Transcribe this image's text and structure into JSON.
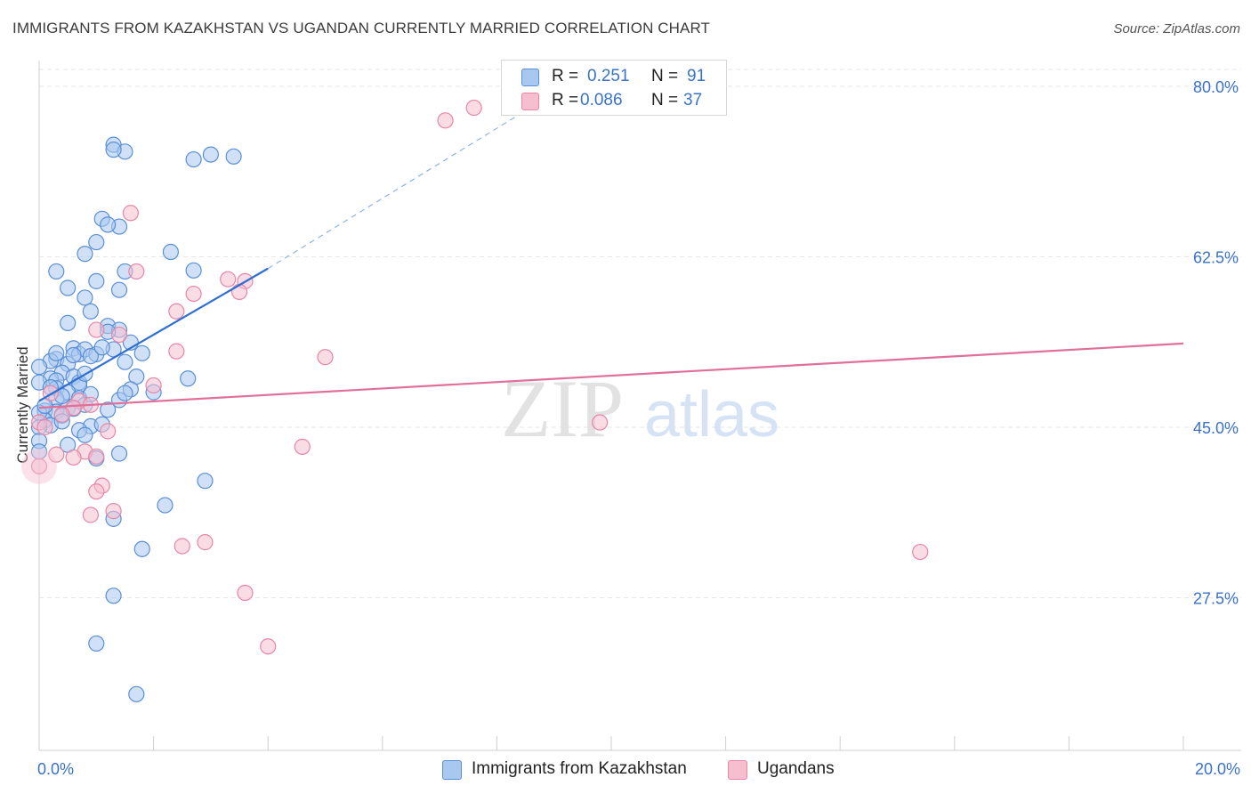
{
  "title": "IMMIGRANTS FROM KAZAKHSTAN VS UGANDAN CURRENTLY MARRIED CORRELATION CHART",
  "source": "Source: ZipAtlas.com",
  "watermark": {
    "zip": "ZIP",
    "atlas": "atlas"
  },
  "stats": {
    "r_label": "R =",
    "n_label": "N =",
    "series1": {
      "r": "0.251",
      "n": "91"
    },
    "series2": {
      "r": "0.086",
      "n": "37"
    }
  },
  "legend": {
    "series1": "Immigrants from Kazakhstan",
    "series2": "Ugandans"
  },
  "colors": {
    "blue_fill": "#a9c8f0",
    "blue_stroke": "#5a8fd8",
    "blue_line": "#2e6fd0",
    "pink_fill": "#f6bfd0",
    "pink_stroke": "#e886a8",
    "pink_line": "#e0709a",
    "tick_label": "#3a72c6",
    "grid": "#e6e6e6"
  },
  "chart_data": {
    "type": "scatter",
    "title": "IMMIGRANTS FROM KAZAKHSTAN VS UGANDAN CURRENTLY MARRIED CORRELATION CHART",
    "xlabel": "",
    "ylabel": "Currently Married",
    "xlim": [
      0,
      20
    ],
    "ylim": [
      10,
      83
    ],
    "x_tick_labels": [
      "0.0%",
      "20.0%"
    ],
    "y_ticks": [
      27.5,
      45.0,
      62.5,
      80.0
    ],
    "y_tick_labels": [
      "27.5%",
      "45.0%",
      "62.5%",
      "80.0%"
    ],
    "series": [
      {
        "name": "Immigrants from Kazakhstan",
        "r": 0.251,
        "n": 91,
        "trend": {
          "x0": 0.0,
          "y0": 47.7,
          "x1": 4.0,
          "y1": 61.3,
          "dash_x1": 8.5,
          "dash_y1": 77.5
        },
        "points": [
          [
            1.3,
            74.0
          ],
          [
            1.5,
            73.3
          ],
          [
            1.3,
            73.5
          ],
          [
            2.7,
            72.5
          ],
          [
            3.0,
            73.0
          ],
          [
            3.4,
            72.8
          ],
          [
            1.1,
            66.4
          ],
          [
            1.4,
            65.6
          ],
          [
            1.2,
            65.8
          ],
          [
            1.0,
            64.0
          ],
          [
            2.3,
            63.0
          ],
          [
            0.3,
            61.0
          ],
          [
            0.8,
            62.8
          ],
          [
            1.5,
            61.0
          ],
          [
            2.7,
            61.1
          ],
          [
            0.5,
            59.3
          ],
          [
            0.8,
            58.3
          ],
          [
            1.4,
            59.1
          ],
          [
            1.0,
            60.0
          ],
          [
            0.9,
            56.9
          ],
          [
            0.5,
            55.7
          ],
          [
            1.2,
            55.4
          ],
          [
            1.4,
            55.0
          ],
          [
            1.2,
            54.8
          ],
          [
            0.6,
            53.1
          ],
          [
            0.7,
            52.5
          ],
          [
            0.8,
            53.0
          ],
          [
            1.0,
            52.5
          ],
          [
            1.3,
            53.0
          ],
          [
            1.8,
            52.6
          ],
          [
            0.9,
            52.3
          ],
          [
            0.3,
            52.0
          ],
          [
            0.2,
            51.8
          ],
          [
            0.5,
            51.5
          ],
          [
            0.0,
            51.2
          ],
          [
            1.5,
            51.7
          ],
          [
            0.4,
            50.6
          ],
          [
            0.6,
            50.2
          ],
          [
            1.7,
            50.2
          ],
          [
            2.6,
            50.0
          ],
          [
            0.2,
            50.0
          ],
          [
            0.0,
            49.6
          ],
          [
            0.3,
            49.8
          ],
          [
            0.7,
            49.6
          ],
          [
            0.3,
            49.0
          ],
          [
            0.7,
            49.3
          ],
          [
            1.6,
            48.9
          ],
          [
            2.0,
            48.6
          ],
          [
            0.5,
            48.6
          ],
          [
            0.3,
            47.9
          ],
          [
            0.7,
            48.0
          ],
          [
            0.8,
            47.3
          ],
          [
            1.4,
            47.8
          ],
          [
            0.1,
            46.7
          ],
          [
            0.5,
            47.0
          ],
          [
            0.3,
            46.6
          ],
          [
            0.4,
            46.2
          ],
          [
            0.1,
            45.7
          ],
          [
            0.2,
            45.2
          ],
          [
            1.2,
            46.8
          ],
          [
            0.9,
            45.1
          ],
          [
            0.0,
            45.0
          ],
          [
            1.1,
            45.3
          ],
          [
            0.7,
            44.7
          ],
          [
            0.8,
            44.2
          ],
          [
            0.0,
            43.6
          ],
          [
            0.5,
            43.2
          ],
          [
            1.4,
            42.3
          ],
          [
            0.0,
            42.5
          ],
          [
            1.0,
            41.8
          ],
          [
            2.9,
            39.5
          ],
          [
            2.2,
            37.0
          ],
          [
            1.3,
            35.6
          ],
          [
            1.8,
            32.5
          ],
          [
            1.3,
            27.7
          ],
          [
            1.0,
            22.8
          ],
          [
            1.7,
            17.6
          ],
          [
            0.0,
            46.5
          ],
          [
            0.6,
            52.4
          ],
          [
            1.1,
            53.2
          ],
          [
            0.4,
            48.2
          ],
          [
            0.2,
            49.1
          ],
          [
            0.8,
            50.5
          ],
          [
            1.6,
            53.7
          ],
          [
            0.1,
            47.2
          ],
          [
            0.3,
            52.6
          ],
          [
            1.5,
            48.5
          ],
          [
            0.6,
            46.9
          ],
          [
            0.9,
            48.4
          ],
          [
            0.4,
            45.6
          ]
        ]
      },
      {
        "name": "Ugandans",
        "r": 0.086,
        "n": 37,
        "trend": {
          "x0": 0.0,
          "y0": 47.0,
          "x1": 20.0,
          "y1": 53.6
        },
        "points": [
          [
            7.6,
            77.8
          ],
          [
            7.1,
            76.5
          ],
          [
            1.6,
            67.0
          ],
          [
            1.7,
            61.0
          ],
          [
            3.3,
            60.2
          ],
          [
            3.6,
            60.0
          ],
          [
            2.7,
            58.7
          ],
          [
            3.5,
            58.9
          ],
          [
            2.4,
            56.9
          ],
          [
            1.0,
            55.0
          ],
          [
            1.4,
            54.5
          ],
          [
            2.4,
            52.8
          ],
          [
            5.0,
            52.2
          ],
          [
            2.0,
            49.3
          ],
          [
            0.2,
            48.5
          ],
          [
            0.7,
            47.7
          ],
          [
            0.9,
            47.3
          ],
          [
            0.6,
            47.0
          ],
          [
            0.4,
            46.3
          ],
          [
            0.0,
            45.5
          ],
          [
            0.1,
            45.0
          ],
          [
            1.2,
            44.6
          ],
          [
            9.8,
            45.5
          ],
          [
            4.6,
            43.0
          ],
          [
            0.3,
            42.2
          ],
          [
            0.8,
            42.5
          ],
          [
            1.0,
            42.0
          ],
          [
            0.6,
            41.9
          ],
          [
            0.0,
            41.0
          ],
          [
            1.1,
            39.0
          ],
          [
            1.0,
            38.4
          ],
          [
            0.9,
            36.0
          ],
          [
            1.3,
            36.4
          ],
          [
            2.9,
            33.2
          ],
          [
            2.5,
            32.8
          ],
          [
            15.4,
            32.2
          ],
          [
            3.6,
            28.0
          ],
          [
            4.0,
            22.5
          ]
        ]
      }
    ]
  }
}
